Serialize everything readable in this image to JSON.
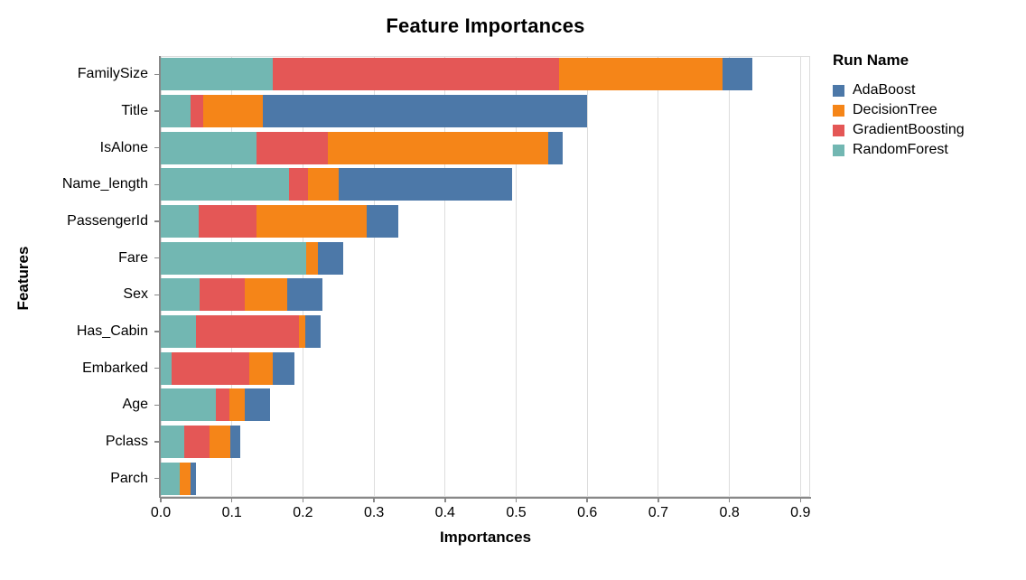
{
  "title": "Feature Importances",
  "axes": {
    "x_title": "Importances",
    "y_title": "Features"
  },
  "legend": {
    "title": "Run Name",
    "entries": [
      {
        "label": "AdaBoost",
        "color": "#4c78a8"
      },
      {
        "label": "DecisionTree",
        "color": "#f58518"
      },
      {
        "label": "GradientBoosting",
        "color": "#e45756"
      },
      {
        "label": "RandomForest",
        "color": "#72b7b2"
      }
    ]
  },
  "colors": {
    "grid": "#dddddd",
    "axis": "#888888",
    "background": "#ffffff",
    "text": "#000000"
  },
  "chart_data": {
    "type": "bar",
    "orientation": "horizontal",
    "stacked": true,
    "title": "Feature Importances",
    "xlabel": "Importances",
    "ylabel": "Features",
    "xlim": [
      0,
      0.913
    ],
    "xticks": [
      0.0,
      0.1,
      0.2,
      0.3,
      0.4,
      0.5,
      0.6,
      0.7,
      0.8,
      0.9
    ],
    "xtick_labels": [
      "0.0",
      "0.1",
      "0.2",
      "0.3",
      "0.4",
      "0.5",
      "0.6",
      "0.7",
      "0.8",
      "0.9"
    ],
    "grid": "vertical",
    "legend_position": "top-right",
    "categories": [
      "FamilySize",
      "Title",
      "IsAlone",
      "Name_length",
      "PassengerId",
      "Fare",
      "Sex",
      "Has_Cabin",
      "Embarked",
      "Age",
      "Pclass",
      "Parch"
    ],
    "series": [
      {
        "name": "RandomForest",
        "color": "#72b7b2",
        "values": [
          0.158,
          0.042,
          0.135,
          0.18,
          0.053,
          0.205,
          0.055,
          0.05,
          0.015,
          0.078,
          0.033,
          0.027
        ]
      },
      {
        "name": "GradientBoosting",
        "color": "#e45756",
        "values": [
          0.402,
          0.018,
          0.1,
          0.027,
          0.082,
          0.0,
          0.063,
          0.145,
          0.11,
          0.018,
          0.035,
          0.0
        ]
      },
      {
        "name": "DecisionTree",
        "color": "#f58518",
        "values": [
          0.23,
          0.083,
          0.31,
          0.043,
          0.155,
          0.016,
          0.06,
          0.008,
          0.032,
          0.022,
          0.03,
          0.015
        ]
      },
      {
        "name": "AdaBoost",
        "color": "#4c78a8",
        "values": [
          0.042,
          0.457,
          0.02,
          0.244,
          0.044,
          0.036,
          0.049,
          0.022,
          0.031,
          0.036,
          0.014,
          0.008
        ]
      }
    ],
    "totals": [
      0.832,
      0.6,
      0.565,
      0.494,
      0.334,
      0.257,
      0.227,
      0.225,
      0.188,
      0.154,
      0.112,
      0.05
    ]
  }
}
